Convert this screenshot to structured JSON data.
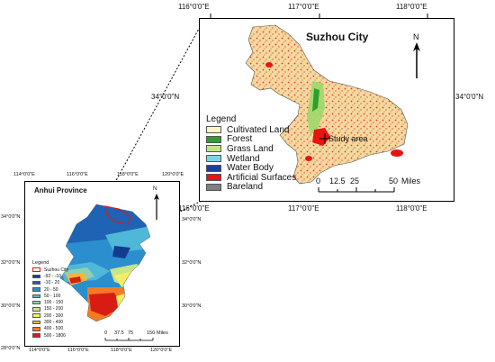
{
  "suzhou_map": {
    "title": "Suzhou City",
    "north_label": "N",
    "top_ticks": [
      "116°0'0\"E",
      "117°0'0\"E",
      "118°0'0\"E"
    ],
    "bottom_ticks": [
      "116°0'0\"E",
      "117°0'0\"E",
      "118°0'0\"E"
    ],
    "left_tick": "34°0'0\"N",
    "right_tick": "34°0'0\"N",
    "study_area_label": "Study area",
    "legend_title": "Legend",
    "legend_items": [
      {
        "label": "Cultivated Land",
        "color": "#fdf6c3"
      },
      {
        "label": "Forest",
        "color": "#2ca02c"
      },
      {
        "label": "Grass Land",
        "color": "#bfe58a"
      },
      {
        "label": "Wetland",
        "color": "#7fd3e8"
      },
      {
        "label": "Water Body",
        "color": "#1f3f9f"
      },
      {
        "label": "Artificial Surfaces",
        "color": "#e8140f"
      },
      {
        "label": "Bareland",
        "color": "#7f7f7f"
      }
    ],
    "scale_labels": [
      "0",
      "12.5",
      "25",
      "50"
    ],
    "scale_unit": "Miles"
  },
  "anhui_map": {
    "title": "Anhui Province",
    "north_label": "N",
    "left_ticks": [
      "34°0'0\"N",
      "32°0'0\"N",
      "30°0'0\"N",
      "28°0'0\"N"
    ],
    "right_ticks": [
      "34°0'0\"N",
      "32°0'0\"N",
      "30°0'0\"N"
    ],
    "top_ticks": [
      "114°0'0\"E",
      "116°0'0\"E",
      "118°0'0\"E",
      "120°0'0\"E"
    ],
    "bottom_ticks": [
      "114°0'0\"E",
      "116°0'0\"E",
      "118°0'0\"E",
      "120°0'0\"E"
    ],
    "legend_title": "Legend",
    "suzhou_label": "Suzhou City",
    "elevation_classes": [
      {
        "label": "-92 - -10",
        "color": "#123d8f"
      },
      {
        "label": "-10 - 20",
        "color": "#1e63b4"
      },
      {
        "label": "20 - 50",
        "color": "#2b8ecf"
      },
      {
        "label": "50 - 100",
        "color": "#4fb8d8"
      },
      {
        "label": "100 - 150",
        "color": "#8fd0b0"
      },
      {
        "label": "150 - 200",
        "color": "#c8e48a"
      },
      {
        "label": "200 - 300",
        "color": "#f4ef62"
      },
      {
        "label": "300 - 400",
        "color": "#f7b43a"
      },
      {
        "label": "400 - 500",
        "color": "#f27b23"
      },
      {
        "label": "500 - 1806",
        "color": "#d91c13"
      }
    ],
    "scale_labels": [
      "0",
      "37.5",
      "75",
      "150"
    ],
    "scale_unit": "Miles"
  }
}
